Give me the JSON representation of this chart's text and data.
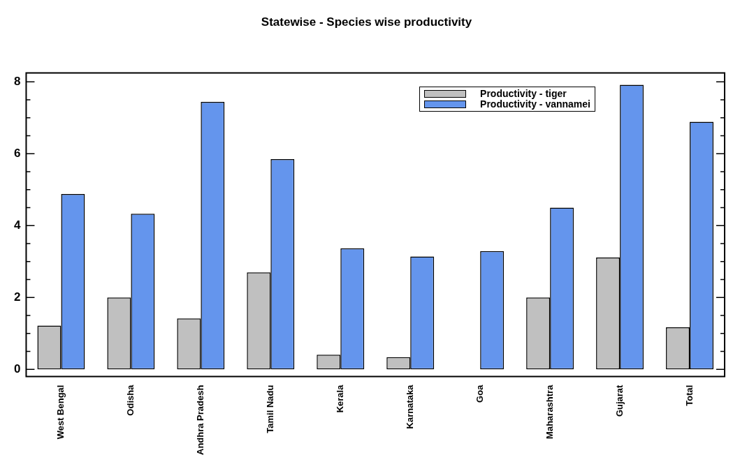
{
  "chart_data": {
    "type": "bar",
    "title": "Statewise - Species wise productivity",
    "categories": [
      "West Bengal",
      "Odisha",
      "Andhra Pradesh",
      "Tamil Nadu",
      "Kerala",
      "Karnataka",
      "Goa",
      "Maharashtra",
      "Gujarat",
      "Total"
    ],
    "series": [
      {
        "name": "Productivity - tiger",
        "color": "#c0c0c0",
        "values": [
          1.22,
          2.0,
          1.42,
          2.7,
          0.41,
          0.34,
          0,
          2.0,
          3.11,
          1.17
        ]
      },
      {
        "name": "Productivity - vannamei",
        "color": "#6495ed",
        "values": [
          4.88,
          4.33,
          7.44,
          5.85,
          3.37,
          3.14,
          3.29,
          4.5,
          7.92,
          6.89
        ]
      }
    ],
    "ylim": [
      -0.2,
      8.25
    ],
    "yticks": [
      0,
      {
        "value": 0.5,
        "label": null
      },
      {
        "value": 1,
        "label": null
      },
      {
        "value": 1.5,
        "label": null
      },
      2,
      {
        "value": 2.5,
        "label": null
      },
      {
        "value": 3,
        "label": null
      },
      {
        "value": 3.5,
        "label": null
      },
      4,
      {
        "value": 4.5,
        "label": null
      },
      {
        "value": 5,
        "label": null
      },
      {
        "value": 5.5,
        "label": null
      },
      6,
      {
        "value": 6.5,
        "label": null
      },
      {
        "value": 7,
        "label": null
      },
      {
        "value": 7.5,
        "label": null
      },
      8
    ],
    "grid": false,
    "legend": "top right"
  }
}
